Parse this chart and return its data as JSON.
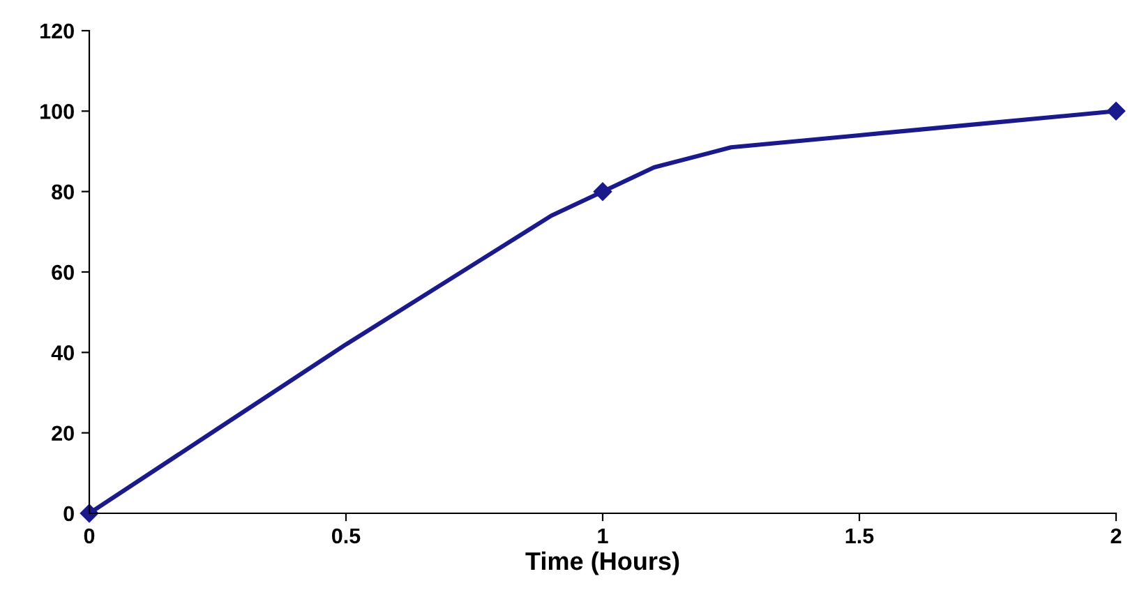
{
  "chart_data": {
    "type": "line",
    "xlabel": "Time (Hours)",
    "x": [
      0,
      1,
      2
    ],
    "series": [
      {
        "color": "#1a1a8c",
        "marker": "none",
        "x": [
          0,
          0.25,
          0.5,
          0.75,
          0.9,
          1,
          1.1,
          1.25,
          1.5,
          1.75,
          2
        ],
        "values": [
          0,
          21,
          42,
          62,
          74,
          80,
          86,
          91,
          94,
          97,
          100
        ]
      },
      {
        "type": "scatter",
        "color": "#1a1a8c",
        "values": [
          0,
          80,
          100
        ]
      }
    ],
    "xlim": [
      0,
      2
    ],
    "xticks": [
      0,
      0.5,
      1,
      1.5,
      2
    ],
    "ylim": [
      0,
      120
    ],
    "yticks": [
      0,
      20,
      40,
      60,
      80,
      100,
      120
    ],
    "marker": "diamond",
    "line_style": "solid",
    "grid": false,
    "legend": false
  }
}
